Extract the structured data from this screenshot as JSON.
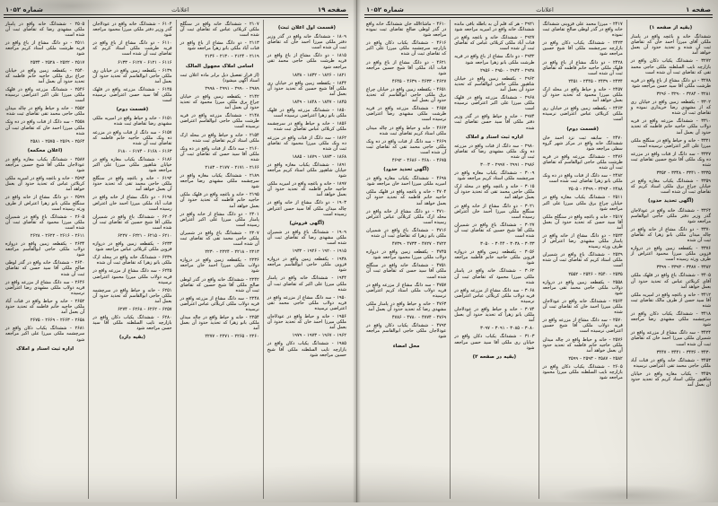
{
  "colors": {
    "paper": "#edebe3",
    "ink": "#26241f",
    "rule": "#23211d"
  },
  "pages": [
    {
      "side": "right",
      "header": {
        "issue": "شماره ۱۰۵۲",
        "center": "اعلانات",
        "page_label": "صفحه ۱"
      },
      "columns": [
        [
          {
            "h": "(بقیه از صفحه ۱)"
          },
          "ششدانگ خانه و باغچه واقع در پامنار ملکی آقای میرزا احمد خان که تقاضای ثبت آن شده و تحدید حدود آن بعمل خواهد آمد",
          "۳۲۷۲ - ششدانگ یکباب دکان واقع در بازارچه نایب السلطنه ملکی حاجی محمد تقی که تقاضای ثبت آن شده است",
          "۳۲۷۸ - دو دانگ مشاع از باغ واقع در قریه طرشت ملکی آقا سید حسن مراجعه شود",
          "۳۲۸۱ - ۳۲۸۴ - ۳۲۹۰ - ۳۲۹۶",
          "۳۳۰۲ - یکقطعه زمین واقع در خیابان ری که از مشهدی رضا خریداری نموده و تقاضای ثبت آن شده",
          "۳۳۱۰ - ششدانگ مزرعه واقع در قریه دولاب ملکی حاجیه خانم فاطمه که تحدید حدود آن بعمل آمد",
          "۳۳۲۱ - خانه و حیاط واقع در سنگلج ملکی میرزا علی اکبر اعتراضی نرسیده است",
          "۳۳۲۷ - سه دانگ از قنات واقع در مزرعه ده ونک ملکی آقا شیخ حسین تقاضای ثبت شده",
          "۳۳۳۵ - ۳۳۴۱ - ۳۳۴۸ - ۳۳۵۲",
          "۳۳۵۹ - ششدانگ یکباب مغازه واقع در خیابان چراغ برق ملکی استاد کریم که تقاضای ثبت آن شده است",
          {
            "h": "(آگهی تحدید حدود)"
          },
          "۳۳۶۴ - ششدانگ خانه واقع در عودلاجان گذر وزیر دفتر ملکی حاجی ابوالقاسم مراجعه شود",
          "۳۳۷۰ - دو دانگ مشاع از خانه واقع در چاله میدان ملکی بانو زهرا که تقاضای ثبت آن شده",
          "۳۳۷۶ - یکقطعه زمین واقع در دروازه قزوین ملکی میرزا محمود اعتراض از طرف ورثه رسیده است",
          "۳۳۸۲ - ۳۳۸۷ - ۳۳۹۳ - ۳۳۹۹",
          "۳۴۰۵ - ششدانگ باغ واقع در قلهک ملکی آقای کربلائی عباس که تحدید حدود آن بعمل خواهد آمد",
          "۳۴۱۲ - خانه و باغچه واقع در امیریه ملکی آقا سید حسن از طرف مالک تقاضای ثبت شده",
          "۳۴۱۸ - ششدانگ یکباب دکان واقع در سرچشمه ملکی مشهدی رضا مراجعه شود",
          "۳۴۲۴ - سه دانگ مشاع از مزرعه واقع در شمیران ملکی میرزا احمد خان که تقاضای ثبت آن شده است",
          "۳۴۳۰ - ۳۴۳۶ - ۳۴۴۱ - ۳۴۴۷",
          "۳۴۵۳ - ششدانگ خانه واقع در قنات آباد ملکی حاجی محمد تقی اعتراضی نرسیده",
          "۳۴۵۹ - یکباب مغازه واقع در خیابان شاهپور ملکی استاد کریم که تحدید حدود آن بعمل آمد"
        ],
        [
          "۲۴۱۷ - میرزا محمد علی قزوینی ششدانگ خانه واقع در گذر لوطی صالح تقاضای ثبت نموده",
          "۲۴۲۳ - ششدانگ یکباب دکان واقع در بازارچه سرچشمه ملکی آقا شیخ حسین مراجعه شود",
          "۲۴۲۸ - دو دانگ مشاع از باغ واقع در قلهک ملکی حاجیه خانم فاطمه که تقاضای ثبت آن شده است",
          "۲۴۳۴ - ۲۴۳۹ - ۲۴۴۵ - ۲۴۵۱",
          "۲۴۵۷ - خانه و حیاط واقع در محله ارک ملکی میرزا محمود که تحدید حدود آن بعمل خواهد آمد",
          "۲۴۶۳ - یکقطعه زمین واقع در خیابان ری ملکی کربلائی عباس اعتراضی نرسیده است",
          {
            "h": "(قسمت دوم)"
          },
          "۲۴۷۰ - سابقه ثبت نزد احمد خان ششدانگ خانه واقع در مرکز شهر گروه سفلی مراجعه شود",
          "۲۴۷۶ - ششدانگ مزرعه واقع در قریه طرشت ملکی حاجی ابوالقاسم که تقاضای ثبت آن شده",
          "۲۴۸۲ - سه دانگ از قنات واقع در ده ونک ملکی بانو زهرا تقاضای ثبت شده است",
          "۲۴۸۸ - ۲۴۹۳ - ۲۴۹۹ - ۲۵۰۵",
          "۲۵۱۱ - ششدانگ یکباب مغازه واقع در خیابان چراغ برق ملکی میرزا علی اکبر مراجعه شود",
          "۲۵۱۷ - خانه و باغچه واقع در سنگلج ملکی آقا سید حسن که تحدید حدود آن بعمل آمد",
          "۲۵۲۳ - دو دانگ مشاع از خانه واقع در پامنار ملکی مشهدی رضا اعتراض از طرف ورثه رسیده",
          "۲۵۲۹ - ششدانگ باغ واقع در شمیران ملکی استاد کریم که تقاضای ثبت آن شده است",
          "۲۵۳۵ - ۲۵۴۰ - ۲۵۴۶ - ۲۵۵۲",
          "۲۵۵۸ - یکقطعه زمین واقع در دروازه دولاب ملکی حاجی محمد تقی مراجعه شود",
          "۲۵۶۴ - ششدانگ خانه واقع در عودلاجان ملکی میرزا احمد خان که تقاضای ثبت آن شده",
          "۲۵۷۰ - سه دانگ مشاع از مزرعه واقع در قریه دولاب ملکی آقا شیخ حسین اعتراضی نرسیده است",
          "۲۵۷۶ - خانه و حیاط واقع در چاله میدان ملکی حاجیه خانم فاطمه که تحدید حدود آن بعمل خواهد آمد",
          "۲۵۸۲ - ۲۵۸۷ - ۲۵۹۳ - ۲۵۹۹",
          "۲۶۰۵ - ششدانگ یکباب دکان واقع در بازارچه نایب السلطنه ملکی میرزا محمود مراجعه شود"
        ],
        [
          "۲۹۲۱ - هر که قلم آن به باطله باقی مانده ششدانگ خانه واقع در امیریه مراجعه شود",
          "۲۹۲۷ - ششدانگ خانه و باغچه واقع در قنات آباد ملکی کربلائی عباس که تقاضای ثبت آن شده است",
          "۲۹۳۲ - دو دانگ مشاع از باغ واقع در قریه طرشت ملکی بانو زهرا مراجعه شود",
          "۲۹۳۸ - ۲۹۴۴ - ۲۹۵۰ - ۲۹۵۶",
          "۲۹۶۲ - یکقطعه زمین واقع در خیابان شاهپور ملکی حاجی ابوالقاسم که تحدید حدود آن بعمل آمد",
          "۲۹۶۸ - ششدانگ مزرعه واقع در قلهک ملکی میرزا علی اکبر اعتراضی نرسیده است",
          "۲۹۷۴ - خانه و حیاط واقع در گذر وزیر دفتر ملکی آقا سید حسن تقاضای ثبت شده",
          {
            "h": "اداره ثبت اسناد و املاک"
          },
          "۲۹۸۰ - سه دانگ از قنات واقع در مزرعه ده ونک ملکی مشهدی رضا که تقاضای ثبت آن شده",
          "۲۹۸۶ - ۲۹۹۱ - ۲۹۹۷ - ۳۰۰۳",
          "۳۰۰۹ - ششدانگ یکباب مغازه واقع در سرچشمه ملکی استاد کریم مراجعه شود",
          "۳۰۱۵ - خانه و باغچه واقع در محله ارک ملکی حاجی محمد تقی که تحدید حدود آن بعمل خواهد آمد",
          "۳۰۲۱ - دو دانگ مشاع از خانه واقع در سنگلج ملکی میرزا احمد خان اعتراض رسیده است",
          "۳۰۲۷ - ششدانگ باغ واقع در شمیران ملکی آقا شیخ حسین که تقاضای ثبت آن شده است",
          "۳۰۳۳ - ۳۰۳۸ - ۳۰۴۴ - ۳۰۵۰",
          "۳۰۵۶ - یکقطعه زمین واقع در دروازه قزوین ملکی حاجیه خانم فاطمه مراجعه شود",
          "۳۰۶۲ - ششدانگ خانه واقع در پامنار ملکی میرزا محمود که تقاضای ثبت آن شده",
          "۳۰۶۸ - سه دانگ مشاع از مزرعه واقع در قریه دولاب ملکی کربلائی عباس اعتراضی نرسیده",
          "۳۰۷۴ - خانه و حیاط واقع در عودلاجان ملکی بانو زهرا که تحدید حدود آن بعمل آمد",
          "۳۰۸۰ - ۳۰۸۵ - ۳۰۹۱ - ۳۰۹۷",
          "۳۱۰۳ - ششدانگ یکباب دکان واقع در خیابان ری ملکی آقا سید حسن مراجعه شود",
          {
            "h": "(بقیه در صفحه ۲)"
          }
        ],
        [
          "۴۶۱۰ - ماشاءالله خان ششدانگ خانه واقع در گذر لوطی صالح تقاضای ثبت نموده مراجعه شود",
          "۴۶۱۶ - ششدانگ یکباب دکان واقع در بازارچه سرچشمه ملکی میرزا علی اکبر که تقاضای ثبت آن شده",
          "۴۶۲۱ - دو دانگ مشاع از باغ واقع در قنات آباد ملکی آقا شیخ حسین مراجعه شود",
          "۴۶۲۷ - ۴۶۳۳ - ۴۶۳۹ - ۴۶۴۵",
          "۴۶۵۱ - یکقطعه زمین واقع در خیابان چراغ برق ملکی حاجی ابوالقاسم که تحدید حدود آن بعمل آمد",
          "۴۶۵۷ - ششدانگ مزرعه واقع در قریه طرشت ملکی مشهدی رضا اعتراضی نرسیده است",
          "۴۶۶۳ - خانه و حیاط واقع در چاله میدان ملکی استاد کریم تقاضای ثبت شده",
          "۴۶۶۹ - سه دانگ از قنات واقع در ده ونک ملکی حاجی محمد تقی که تقاضای ثبت آن شده است",
          "۴۶۷۵ - ۴۶۸۰ - ۴۶۸۶ - ۴۶۹۲",
          {
            "h": "(آگهی تحدید حدود)"
          },
          "۴۶۹۸ - ششدانگ یکباب مغازه واقع در امیریه ملکی میرزا احمد خان مراجعه شود",
          "۴۷۰۴ - خانه و باغچه واقع در قلهک ملکی حاجیه خانم فاطمه که تحدید حدود آن بعمل خواهد آمد",
          "۴۷۱۰ - دو دانگ مشاع از خانه واقع در محله ارک ملکی کربلائی عباس اعتراض رسیده است",
          "۴۷۱۶ - ششدانگ باغ واقع در شمیران ملکی بانو زهرا که تقاضای ثبت آن شده",
          "۴۷۲۲ - ۴۷۲۷ - ۴۷۳۳ - ۴۷۳۹",
          "۴۷۴۵ - یکقطعه زمین واقع در دروازه دولاب ملکی میرزا محمود مراجعه شود",
          "۴۷۵۱ - ششدانگ خانه واقع در سنگلج ملکی آقا سید حسن که تقاضای ثبت آن شده است",
          "۴۷۵۷ - سه دانگ مشاع از مزرعه واقع در قریه دولاب ملکی استاد کریم اعتراضی نرسیده",
          "۴۷۶۳ - خانه و حیاط واقع در پامنار ملکی مشهدی رضا که تحدید حدود آن بعمل آمد",
          "۴۷۶۹ - ۴۷۷۴ - ۴۷۸۰ - ۴۷۸۶",
          "۴۷۹۲ - ششدانگ یکباب دکان واقع در عودلاجان ملکی حاجی ابوالقاسم مراجعه شود",
          {
            "h": "محل امضاء"
          }
        ]
      ]
    },
    {
      "side": "left",
      "header": {
        "issue": "شماره ۱۰۵۲",
        "center": "اعلانات",
        "page_label": "صفحه ۱۹"
      },
      "columns": [
        [
          {
            "h": "(قسمت اول اعلان ثبت)"
          },
          "۱۸۰۹ - ششدانگ خانه واقع در گذر وزیر دفتر ملکی میرزا احمد خان که تقاضای ثبت آن شده است",
          "۱۸۱۵ - دو دانگ مشاع از باغ واقع در قریه طرشت ملکی حاجی محمد تقی مراجعه شود",
          "۱۸۲۱ - ۱۸۲۶ - ۱۸۳۲ - ۱۸۳۸",
          "۱۸۴۴ - یکقطعه زمین واقع در خیابان ری ملکی آقا شیخ حسین که تحدید حدود آن بعمل آمد",
          "۱۸۴۵ - ۱۸۴۷ - ۱۸۴۸ - ۱۸۴۹",
          "۱۸۵۰ - ششدانگ مزرعه واقع در قلهک ملکی بانو زهرا اعتراضی نرسیده است",
          "۱۸۵۶ - خانه و حیاط واقع در سرچشمه ملکی کربلائی عباس تقاضای ثبت شده",
          "۱۸۶۲ - سه دانگ از قنات واقع در مزرعه ده ونک ملکی میرزا محمود که تقاضای ثبت آن شده",
          "۱۸۶۸ - ۱۸۷۳ - ۱۸۷۹ - ۱۸۸۵",
          "۱۸۹۱ - ششدانگ یکباب مغازه واقع در خیابان شاهپور ملکی استاد کریم مراجعه شود",
          "۱۸۹۷ - خانه و باغچه واقع در امیریه ملکی حاجیه خانم فاطمه که تحدید حدود آن بعمل خواهد آمد",
          "۱۹۰۳ - دو دانگ مشاع از خانه واقع در چاله میدان ملکی آقا سید حسن اعتراض رسیده است",
          {
            "h": "(آگهی فروش)"
          },
          "۱۹۰۹ - ششدانگ باغ واقع در شمیران ملکی مشهدی رضا که تقاضای ثبت آن شده است",
          "۱۹۱۵ - ۱۹۲۰ - ۱۹۲۶ - ۱۹۳۲",
          "۱۹۳۸ - یکقطعه زمین واقع در دروازه قزوین ملکی حاجی ابوالقاسم مراجعه شود",
          "۱۹۴۴ - ششدانگ خانه واقع در پامنار ملکی میرزا علی اکبر که تقاضای ثبت آن شده",
          "۱۹۵۰ - سه دانگ مشاع از مزرعه واقع در قریه دولاب ملکی حاجی محمد تقی اعتراضی نرسیده",
          "۱۹۵۶ - خانه و حیاط واقع در عودلاجان ملکی میرزا احمد خان که تحدید حدود آن بعمل آمد",
          "۱۹۶۲ - ۱۹۶۷ - ۱۹۷۳ - ۱۹۷۹",
          "۱۹۸۵ - ششدانگ یکباب دکان واقع در بازارچه نایب السلطنه ملکی آقا شیخ حسین مراجعه شود"
        ],
        [
          "۲۱۰۷ - ششدانگ خانه واقع در سنگلج ملکی کربلائی عباس که تقاضای ثبت آن شده است",
          "۲۱۱۳ - دو دانگ مشاع از باغ واقع در قنات آباد ملکی بانو زهرا مراجعه شود",
          "۲۱۱۹ - ۲۱۲۴ - ۲۱۳۰ - ۲۱۳۶",
          {
            "h": "اسامی املاک مجهول المالک"
          },
          "(از قرار تفصیل ذیل برابر ماده اعلان ثبت اسناد آگهی میشود)",
          "۲۹۸۹ - ۲۹۹۰ - ۲۹۹۱ - ۲۹۹۸",
          "۲۱۴۲ - یکقطعه زمین واقع در خیابان چراغ برق ملکی میرزا محمود که تحدید حدود آن بعمل آمد",
          "۲۱۴۸ - ششدانگ مزرعه واقع در قریه طرشت ملکی حاجی ابوالقاسم اعتراضی نرسیده است",
          "۲۱۵۴ - خانه و حیاط واقع در محله ارک ملکی استاد کریم تقاضای ثبت شده",
          "۲۱۶۰ - سه دانگ از قنات واقع در ده ونک ملکی آقا سید حسن که تقاضای ثبت آن شده",
          "۲۱۶۶ - ۲۱۷۱ - ۲۱۷۷ - ۲۱۸۳",
          "۲۱۸۹ - ششدانگ یکباب مغازه واقع در سرچشمه ملکی مشهدی رضا مراجعه شود",
          "۲۱۹۵ - خانه و باغچه واقع در قلهک ملکی حاجیه خانم فاطمه که تحدید حدود آن بعمل خواهد آمد",
          "۲۲۰۱ - دو دانگ مشاع از خانه واقع در پامنار ملکی میرزا علی اکبر اعتراض رسیده است",
          "۲۲۰۷ - ششدانگ باغ واقع در شمیران ملکی حاجی محمد تقی که تقاضای ثبت آن شده است",
          "۲۲۱۳ - ۲۲۱۸ - ۲۲۲۴ - ۲۲۳۰",
          "۲۲۳۶ - یکقطعه زمین واقع در دروازه دولاب ملکی میرزا احمد خان مراجعه شود",
          "۲۲۴۲ - ششدانگ خانه واقع در گذر لوطی صالح ملکی آقا شیخ حسین که تقاضای ثبت آن شده",
          "۲۲۴۸ - سه دانگ مشاع از مزرعه واقع در قریه دولاب ملکی کربلائی عباس اعتراضی نرسیده",
          "۲۲۵۴ - خانه و حیاط واقع در چاله میدان ملکی بانو زهرا که تحدید حدود آن بعمل آمد",
          "۲۲۶۰ - ۲۲۶۵ - ۲۲۷۱ - ۲۲۷۷"
        ],
        [
          "۶۱۰۴ - ششدانگ خانه واقع در عودلاجان گذر وزیر دفتر ملکی میرزا محمود مراجعه شود",
          "۶۱۱۰ - دو دانگ مشاع از باغ واقع در قریه طرشت ملکی استاد کریم که تقاضای ثبت آن شده است",
          "۶۱۱۶ - ۶۱۲۱ - ۶۱۲۷ - ۶۱۳۳",
          "۶۱۳۹ - یکقطعه زمین واقع در خیابان ری ملکی حاجی ابوالقاسم که تحدید حدود آن بعمل آمد",
          "۶۱۴۵ - ششدانگ مزرعه واقع در قلهک ملکی آقا سید حسن اعتراضی نرسیده است",
          {
            "h": "(قسمت دوم)"
          },
          "۶۱۵۱ - خانه و حیاط واقع در امیریه ملکی مشهدی رضا تقاضای ثبت شده",
          "۶۱۵۷ - سه دانگ از قنات واقع در مزرعه ده ونک ملکی حاجیه خانم فاطمه که تقاضای ثبت آن شده",
          "۶۱۶۳ - ۶۱۶۸ - ۶۱۷۴ - ۶۱۸۰",
          "۶۱۸۶ - ششدانگ یکباب مغازه واقع در خیابان شاهپور ملکی میرزا علی اکبر مراجعه شود",
          "۶۱۹۲ - خانه و باغچه واقع در سنگلج ملکی حاجی محمد تقی که تحدید حدود آن بعمل خواهد آمد",
          "۶۱۹۸ - دو دانگ مشاع از خانه واقع در قنات آباد ملکی میرزا احمد خان اعتراض رسیده است",
          "۶۲۰۴ - ششدانگ باغ واقع در شمیران ملکی آقا شیخ حسین که تقاضای ثبت آن شده است",
          "۶۲۱۰ - ۶۲۱۵ - ۶۲۲۱ - ۶۲۲۷",
          "۶۲۳۳ - یکقطعه زمین واقع در دروازه قزوین ملکی کربلائی عباس مراجعه شود",
          "۶۲۳۹ - ششدانگ خانه واقع در محله ارک ملکی بانو زهرا که تقاضای ثبت آن شده",
          "۶۲۴۵ - سه دانگ مشاع از مزرعه واقع در قریه دولاب ملکی میرزا محمود اعتراضی نرسیده",
          "۶۲۵۱ - خانه و حیاط واقع در سرچشمه ملکی حاجی ابوالقاسم که تحدید حدود آن بعمل آمد",
          "۶۲۵۷ - ۶۲۶۲ - ۶۲۶۸ - ۶۲۷۴",
          "۶۲۸۰ - ششدانگ یکباب دکان واقع در بازارچه نایب السلطنه ملکی آقا سید حسن مراجعه شود",
          {
            "h": "(بقیه دارد)"
          }
        ],
        [
          "۲۵۰۵ - ششدانگ خانه واقع در پامنار ملکی مشهدی رضا که تقاضای ثبت آن شده است",
          "۲۵۱۱ - دو دانگ مشاع از باغ واقع در قریه طرشت ملکی استاد کریم مراجعه شود",
          "۲۵۱۷ - ۲۵۲۲ - ۲۵۲۸ - ۲۵۳۴",
          "۲۵۴۰ - یکقطعه زمین واقع در خیابان چراغ برق ملکی حاجیه خانم فاطمه که تحدید حدود آن بعمل آمد",
          "۲۵۴۶ - ششدانگ مزرعه واقع در قلهک ملکی میرزا علی اکبر اعتراضی نرسیده است",
          "۲۵۵۲ - خانه و حیاط واقع در چاله میدان ملکی حاجی محمد تقی تقاضای ثبت شده",
          "۲۵۵۸ - سه دانگ از قنات واقع در ده ونک ملکی میرزا احمد خان که تقاضای ثبت آن شده",
          "۲۵۶۴ - ۲۵۶۹ - ۲۵۷۵ - ۲۵۸۱",
          {
            "h": "(اعلان محکمه)"
          },
          "۲۵۸۷ - ششدانگ یکباب مغازه واقع در عودلاجان ملکی آقا شیخ حسین مراجعه شود",
          "۲۵۹۳ - خانه و باغچه واقع در امیریه ملکی کربلائی عباس که تحدید حدود آن بعمل خواهد آمد",
          "۲۵۹۹ - دو دانگ مشاع از خانه واقع در سنگلج ملکی بانو زهرا اعتراض از طرف ورثه رسیده است",
          "۲۶۰۵ - ششدانگ باغ واقع در شمیران ملکی میرزا محمود که تقاضای ثبت آن شده است",
          "۲۶۱۱ - ۲۶۱۶ - ۲۶۲۲ - ۲۶۲۸",
          "۲۶۳۴ - یکقطعه زمین واقع در دروازه دولاب ملکی حاجی ابوالقاسم مراجعه شود",
          "۲۶۴۰ - ششدانگ خانه واقع در گذر لوطی صالح ملکی آقا سید حسن که تقاضای ثبت آن شده",
          "۲۶۴۶ - سه دانگ مشاع از مزرعه واقع در قریه دولاب ملکی مشهدی رضا اعتراضی نرسیده",
          "۲۶۵۲ - خانه و حیاط واقع در قنات آباد ملکی حاجیه خانم فاطمه که تحدید حدود آن بعمل آمد",
          "۲۶۵۸ - ۲۶۶۳ - ۲۶۶۹ - ۲۶۷۵",
          "۲۶۸۱ - ششدانگ یکباب دکان واقع در سرچشمه ملکی میرزا علی اکبر مراجعه شود",
          {
            "h": "اداره ثبت اسناد و املاک"
          }
        ]
      ]
    }
  ]
}
